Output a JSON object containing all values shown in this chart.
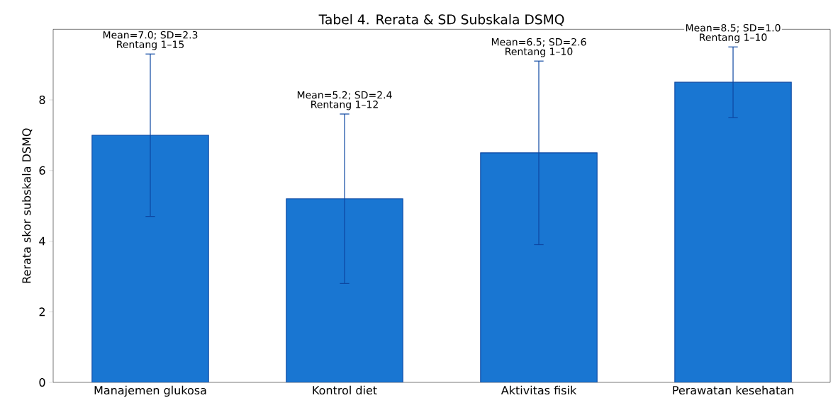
{
  "chart_data": {
    "type": "bar",
    "title": "Tabel 4. Rerata & SD Subskala DSMQ",
    "ylabel": "Rerata skor subskala DSMQ",
    "categories": [
      "Manajemen glukosa",
      "Kontrol diet",
      "Aktivitas fisik",
      "Perawatan kesehatan"
    ],
    "values": [
      7.0,
      5.2,
      6.5,
      8.5
    ],
    "errors": [
      2.3,
      2.4,
      2.6,
      1.0
    ],
    "color": "#1976d2",
    "ylim": [
      0,
      10
    ],
    "yticks": [
      0,
      2,
      4,
      6,
      8
    ],
    "annotations": [
      {
        "text": "Mean=7.0; SD=2.3",
        "x": "Manajemen glukosa",
        "y": 9.3
      },
      {
        "text": "Rentang 1–15",
        "x": "Manajemen glukosa",
        "y": 9.3
      },
      {
        "text": "Mean=5.2; SD=2.4",
        "x": "Kontrol diet",
        "y": 7.6
      },
      {
        "text": "Rentang 1–12",
        "x": "Kontrol diet",
        "y": 7.6
      },
      {
        "text": "Mean=6.5; SD=2.6",
        "x": "Aktivitas fisik",
        "y": 9.1
      },
      {
        "text": "Rentang 1–10",
        "x": "Aktivitas fisik",
        "y": 9.1
      },
      {
        "text": "Mean=8.5; SD=1.0",
        "x": "Perawatan kesehatan",
        "y": 9.5
      },
      {
        "text": "Rentang 1–10",
        "x": "Perawatan kesehatan",
        "y": 9.5
      }
    ]
  }
}
